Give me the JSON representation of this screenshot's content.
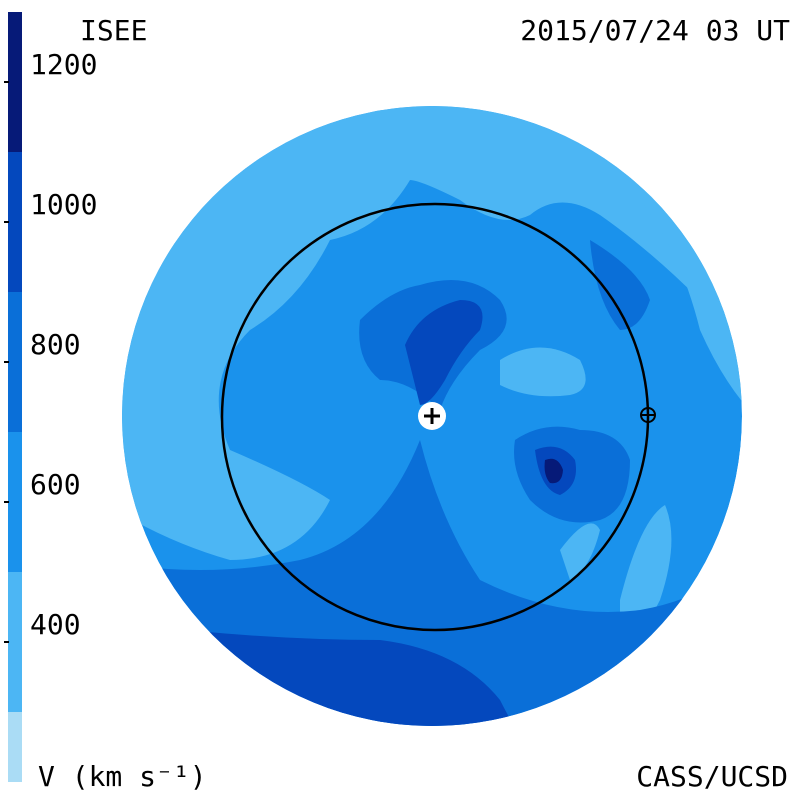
{
  "chart_data": {
    "type": "velocity-map",
    "source": "ISEE",
    "timestamp": "2015/07/24 03 UT",
    "colorbar_label": "V (km s⁻¹)",
    "credit": "CASS/UCSD",
    "clim": [
      200,
      1300
    ],
    "cticks": [
      400,
      600,
      800,
      1000,
      1200
    ],
    "colorbar": {
      "bounds": [
        200,
        300,
        500,
        700,
        900,
        1100,
        1300
      ],
      "colors": [
        "#aadcf5",
        "#4cb6f4",
        "#1a92ec",
        "#0a6fd8",
        "#0448bd",
        "#061a78"
      ]
    }
  }
}
